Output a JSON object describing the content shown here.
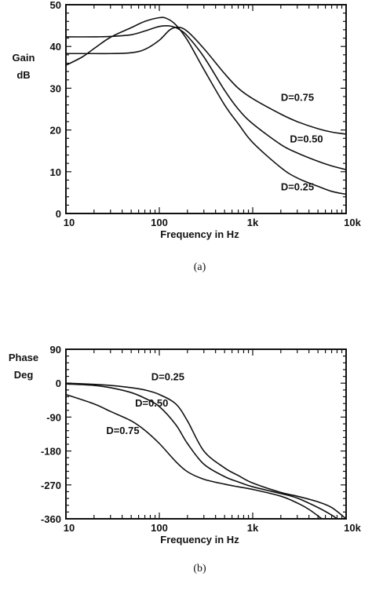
{
  "chart_data": [
    {
      "type": "line",
      "sublabel": "(a)",
      "xlabel": "Frequency in Hz",
      "ylabel_lines": [
        "Gain",
        "dB"
      ],
      "xscale": "log",
      "xlim": [
        10,
        10000
      ],
      "ylim": [
        0,
        50
      ],
      "xticks": [
        {
          "value": 10,
          "label": "10"
        },
        {
          "value": 100,
          "label": "100"
        },
        {
          "value": 1000,
          "label": "1k"
        },
        {
          "value": 10000,
          "label": "10k"
        }
      ],
      "yticks": [
        {
          "value": 0,
          "label": "0"
        },
        {
          "value": 10,
          "label": "10"
        },
        {
          "value": 20,
          "label": "20"
        },
        {
          "value": 30,
          "label": "30"
        },
        {
          "value": 40,
          "label": "40"
        },
        {
          "value": 50,
          "label": "50"
        }
      ],
      "series": [
        {
          "name": "D=0.75",
          "label_at": {
            "x": 2000,
            "y": 27
          },
          "x": [
            10,
            20,
            30,
            50,
            70,
            100,
            130,
            160,
            200,
            300,
            500,
            700,
            1000,
            2000,
            3000,
            5000,
            7000,
            10000
          ],
          "y": [
            38.3,
            38.3,
            38.3,
            38.5,
            39.3,
            41.5,
            44.0,
            44.6,
            43.6,
            39.5,
            33.5,
            30.0,
            27.5,
            23.8,
            22.0,
            20.3,
            19.5,
            19.0
          ]
        },
        {
          "name": "D=0.50",
          "label_at": {
            "x": 2500,
            "y": 17
          },
          "x": [
            10,
            20,
            30,
            50,
            70,
            100,
            130,
            160,
            200,
            300,
            500,
            700,
            1000,
            2000,
            3000,
            5000,
            7000,
            10000
          ],
          "y": [
            42.3,
            42.3,
            42.4,
            42.8,
            43.7,
            44.8,
            44.9,
            44.2,
            42.5,
            37.5,
            29.5,
            25.0,
            21.5,
            16.5,
            14.5,
            12.5,
            11.4,
            10.5
          ]
        },
        {
          "name": "D=0.25",
          "label_at": {
            "x": 2000,
            "y": 5.5
          },
          "x": [
            10,
            15,
            20,
            30,
            50,
            70,
            100,
            120,
            150,
            200,
            300,
            500,
            700,
            1000,
            2000,
            3000,
            5000,
            7000,
            10000
          ],
          "y": [
            35.5,
            37.5,
            39.5,
            42.2,
            44.5,
            46.0,
            46.9,
            46.7,
            45.2,
            41.5,
            34.5,
            26.0,
            21.5,
            17.0,
            11.0,
            8.5,
            6.5,
            5.3,
            4.6
          ]
        }
      ]
    },
    {
      "type": "line",
      "sublabel": "(b)",
      "xlabel": "Frequency in Hz",
      "ylabel_lines": [
        "Phase",
        "Deg"
      ],
      "xscale": "log",
      "xlim": [
        10,
        10000
      ],
      "ylim": [
        -360,
        90
      ],
      "xticks": [
        {
          "value": 10,
          "label": "10"
        },
        {
          "value": 100,
          "label": "100"
        },
        {
          "value": 1000,
          "label": "1k"
        },
        {
          "value": 10000,
          "label": "10k"
        }
      ],
      "yticks": [
        {
          "value": 90,
          "label": "90"
        },
        {
          "value": 0,
          "label": "0"
        },
        {
          "value": -90,
          "label": "-90"
        },
        {
          "value": -180,
          "label": "-180"
        },
        {
          "value": -270,
          "label": "-270"
        },
        {
          "value": -360,
          "label": "-360"
        }
      ],
      "series": [
        {
          "name": "D=0.25",
          "label_at": {
            "x": 82,
            "y": 8
          },
          "x": [
            10,
            20,
            30,
            50,
            70,
            100,
            150,
            200,
            300,
            500,
            700,
            1000,
            2000,
            3000,
            5000,
            7000,
            10000
          ],
          "y": [
            0,
            -3,
            -6,
            -12,
            -18,
            -30,
            -55,
            -100,
            -180,
            -225,
            -245,
            -265,
            -290,
            -300,
            -315,
            -330,
            -360
          ]
        },
        {
          "name": "D=0.50",
          "label_at": {
            "x": 55,
            "y": -62
          },
          "x": [
            10,
            20,
            30,
            50,
            70,
            100,
            150,
            200,
            300,
            500,
            700,
            1000,
            2000,
            3000,
            5000,
            7000,
            8000
          ],
          "y": [
            -2,
            -6,
            -12,
            -25,
            -40,
            -62,
            -110,
            -160,
            -215,
            -248,
            -262,
            -275,
            -293,
            -305,
            -330,
            -350,
            -360
          ]
        },
        {
          "name": "D=0.75",
          "label_at": {
            "x": 27,
            "y": -135
          },
          "x": [
            10,
            20,
            30,
            50,
            70,
            100,
            150,
            200,
            300,
            500,
            700,
            1000,
            2000,
            3000,
            4000,
            5500
          ],
          "y": [
            -30,
            -55,
            -75,
            -100,
            -125,
            -160,
            -208,
            -235,
            -255,
            -268,
            -275,
            -282,
            -300,
            -318,
            -335,
            -360
          ]
        }
      ]
    }
  ]
}
